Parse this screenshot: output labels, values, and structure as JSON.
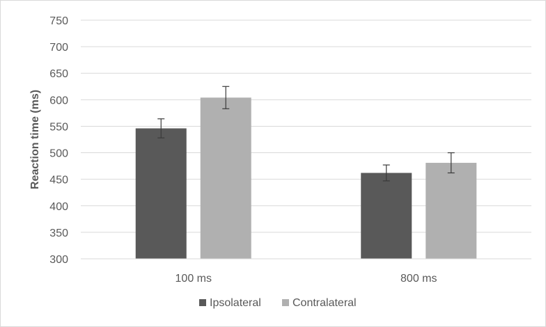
{
  "chart_data": {
    "type": "bar",
    "title": "",
    "xlabel": "",
    "ylabel": "Reaction time (ms)",
    "categories": [
      "100 ms",
      "800 ms"
    ],
    "series": [
      {
        "name": "Ipsolateral",
        "values": [
          546,
          462
        ],
        "errors": [
          18,
          15
        ],
        "color": "#595959"
      },
      {
        "name": "Contralateral",
        "values": [
          604,
          481
        ],
        "errors": [
          21,
          19
        ],
        "color": "#b0b0b0"
      }
    ],
    "ylim": [
      300,
      750
    ],
    "yticks": [
      300,
      350,
      400,
      450,
      500,
      550,
      600,
      650,
      700,
      750
    ],
    "ytick_labels": [
      "300",
      "350",
      "400",
      "450",
      "500",
      "550",
      "600",
      "650",
      "700",
      "750"
    ],
    "grid": true,
    "gridline_color": "#d9d9d9",
    "legend": "bottom",
    "error_bars": true
  }
}
